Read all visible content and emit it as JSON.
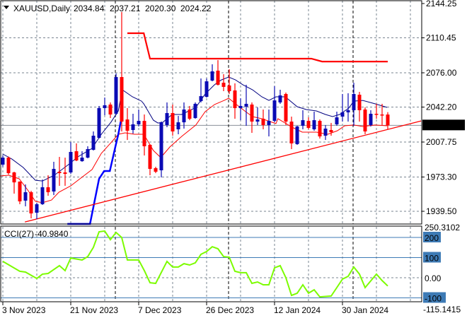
{
  "chart_data": {
    "type": "candlestick",
    "symbol": "XAUUSD",
    "timeframe": "Daily",
    "header": {
      "symbol_tf": "XAUUSD,Daily",
      "open": "2034.84",
      "high": "2037.21",
      "low": "2020.30",
      "close": "2024.22"
    },
    "price_axis": {
      "ylim": [
        1923.0,
        2144.25
      ],
      "labels": [
        "2144.25",
        "2110.45",
        "2076.00",
        "2042.20",
        "2007.75",
        "1973.30",
        "1939.50"
      ],
      "label_values": [
        2144.25,
        2110.45,
        2076.0,
        2042.2,
        2007.75,
        1973.3,
        1939.5
      ]
    },
    "current_price": {
      "label": "2024.22",
      "value": 2024.22
    },
    "date_labels": [
      {
        "label": "3 Nov 2023",
        "index": 0
      },
      {
        "label": "21 Nov 2023",
        "index": 12
      },
      {
        "label": "7 Dec 2023",
        "index": 24
      },
      {
        "label": "26 Dec 2023",
        "index": 36
      },
      {
        "label": "12 Jan 2024",
        "index": 48
      },
      {
        "label": "30 Jan 2024",
        "index": 60
      }
    ],
    "period_separators": [
      20,
      40,
      62
    ],
    "ohlc": [
      [
        1985.5,
        1994.5,
        1983.4,
        1992.4
      ],
      [
        1992.4,
        1993.5,
        1975.7,
        1977.1
      ],
      [
        1977.8,
        1978.5,
        1956.9,
        1968.0
      ],
      [
        1968.8,
        1969.0,
        1946.5,
        1949.3
      ],
      [
        1950.0,
        1966.0,
        1944.4,
        1958.3
      ],
      [
        1958.3,
        1959.7,
        1932.5,
        1937.4
      ],
      [
        1938.1,
        1947.9,
        1931.8,
        1946.5
      ],
      [
        1946.5,
        1970.8,
        1945.8,
        1963.2
      ],
      [
        1963.2,
        1975.0,
        1954.8,
        1958.3
      ],
      [
        1959.0,
        1988.3,
        1955.5,
        1981.3
      ],
      [
        1978.5,
        1993.1,
        1964.6,
        1977.1
      ],
      [
        1977.8,
        1992.4,
        1964.6,
        1976.4
      ],
      [
        1977.8,
        2007.7,
        1976.4,
        1998.0
      ],
      [
        1998.7,
        2006.4,
        1988.9,
        1989.6
      ],
      [
        1988.9,
        1998.7,
        1988.3,
        1992.4
      ],
      [
        1992.4,
        2003.6,
        1991.7,
        2000.8
      ],
      [
        2000.1,
        2018.2,
        1999.4,
        2014.0
      ],
      [
        2011.9,
        2043.3,
        2011.2,
        2041.2
      ],
      [
        2041.2,
        2051.6,
        2034.2,
        2044.0
      ],
      [
        2044.7,
        2046.8,
        2031.4,
        2034.9
      ],
      [
        2035.6,
        2075.3,
        2034.2,
        2071.8
      ],
      [
        2071.8,
        2135.9,
        2018.2,
        2027.9
      ],
      [
        2030.0,
        2041.2,
        2009.8,
        2018.9
      ],
      [
        2019.6,
        2035.6,
        2016.1,
        2025.2
      ],
      [
        2025.2,
        2039.8,
        2023.1,
        2028.6
      ],
      [
        2028.6,
        2034.9,
        1994.5,
        2003.6
      ],
      [
        2005.0,
        2005.7,
        1975.0,
        1981.3
      ],
      [
        1982.0,
        1983.4,
        1977.1,
        1978.5
      ],
      [
        1979.9,
        2028.0,
        1972.9,
        2027.2
      ],
      [
        2024.5,
        2046.8,
        2022.4,
        2036.3
      ],
      [
        2036.3,
        2044.7,
        2014.0,
        2018.2
      ],
      [
        2020.3,
        2033.5,
        2015.4,
        2027.2
      ],
      [
        2027.2,
        2046.8,
        2021.0,
        2039.8
      ],
      [
        2039.8,
        2043.3,
        2029.3,
        2030.7
      ],
      [
        2031.4,
        2046.8,
        2030.7,
        2045.4
      ],
      [
        2048.1,
        2070.4,
        2046.8,
        2053.0
      ],
      [
        2052.3,
        2070.4,
        2051.6,
        2067.6
      ],
      [
        2068.3,
        2084.4,
        2067.6,
        2077.4
      ],
      [
        2078.1,
        2088.5,
        2063.5,
        2064.2
      ],
      [
        2066.2,
        2074.6,
        2057.9,
        2062.1
      ],
      [
        2063.5,
        2079.5,
        2055.1,
        2057.9
      ],
      [
        2058.6,
        2065.6,
        2030.7,
        2041.2
      ],
      [
        2041.2,
        2050.9,
        2029.3,
        2043.3
      ],
      [
        2042.6,
        2064.2,
        2023.8,
        2045.4
      ],
      [
        2044.7,
        2046.8,
        2016.8,
        2027.9
      ],
      [
        2027.9,
        2041.9,
        2024.5,
        2030.0
      ],
      [
        2030.7,
        2039.8,
        2020.3,
        2024.5
      ],
      [
        2024.5,
        2039.8,
        2013.3,
        2028.6
      ],
      [
        2028.6,
        2062.8,
        2027.2,
        2048.8
      ],
      [
        2046.8,
        2059.3,
        2045.4,
        2053.7
      ],
      [
        2055.1,
        2056.5,
        2024.5,
        2027.9
      ],
      [
        2027.9,
        2032.8,
        2000.8,
        2006.4
      ],
      [
        2005.7,
        2023.8,
        2005.0,
        2023.1
      ],
      [
        2023.8,
        2039.1,
        2020.3,
        2029.3
      ],
      [
        2028.6,
        2032.1,
        2020.3,
        2021.7
      ],
      [
        2020.3,
        2037.7,
        2018.9,
        2029.3
      ],
      [
        2028.6,
        2030.0,
        2011.2,
        2013.3
      ],
      [
        2014.0,
        2024.5,
        2009.8,
        2021.0
      ],
      [
        2019.6,
        2026.6,
        2014.0,
        2017.5
      ],
      [
        2025.2,
        2037.7,
        2023.8,
        2032.1
      ],
      [
        2032.8,
        2055.1,
        2027.9,
        2037.0
      ],
      [
        2037.0,
        2055.8,
        2027.9,
        2039.1
      ],
      [
        2039.1,
        2066.2,
        2023.8,
        2055.1
      ],
      [
        2054.4,
        2057.2,
        2027.9,
        2039.1
      ],
      [
        2039.8,
        2041.9,
        2015.4,
        2018.2
      ],
      [
        2024.5,
        2039.1,
        2023.1,
        2035.6
      ],
      [
        2035.6,
        2045.4,
        2030.7,
        2034.9
      ],
      [
        2034.9,
        2045.4,
        2024.5,
        2034.2
      ],
      [
        2034.84,
        2037.21,
        2020.3,
        2024.22
      ]
    ],
    "series": [
      {
        "name": "fast-ma",
        "color": "#000080",
        "points": [
          [
            0,
            1995.9
          ],
          [
            1.6,
            1991.0
          ],
          [
            3.6,
            1982.7
          ],
          [
            5.75,
            1970.1
          ],
          [
            7,
            1969.4
          ],
          [
            9.1,
            1975.0
          ],
          [
            11.6,
            1985.5
          ],
          [
            13.25,
            1993.1
          ],
          [
            15.75,
            2001.5
          ],
          [
            17.4,
            2015.4
          ],
          [
            19.1,
            2027.3
          ],
          [
            20.4,
            2038.4
          ],
          [
            21.1,
            2059.3
          ],
          [
            22.9,
            2052.3
          ],
          [
            24.5,
            2048.1
          ],
          [
            24.9,
            2045.4
          ],
          [
            26.6,
            2029.3
          ],
          [
            27.4,
            2026.5
          ],
          [
            28.25,
            2027.2
          ],
          [
            29.9,
            2034.9
          ],
          [
            31.6,
            2034.9
          ],
          [
            34.1,
            2041.9
          ],
          [
            35.75,
            2055.1
          ],
          [
            37.4,
            2064.2
          ],
          [
            38.6,
            2069.0
          ],
          [
            39.9,
            2071.8
          ],
          [
            41.1,
            2069.0
          ],
          [
            42.4,
            2064.2
          ],
          [
            44.1,
            2059.3
          ],
          [
            45.75,
            2052.3
          ],
          [
            47,
            2048.8
          ],
          [
            48.25,
            2052.3
          ],
          [
            49.9,
            2052.3
          ],
          [
            52,
            2042.6
          ],
          [
            53.6,
            2039.8
          ],
          [
            55.4,
            2038.4
          ],
          [
            57,
            2034.9
          ],
          [
            58.25,
            2032.8
          ],
          [
            59.5,
            2034.9
          ],
          [
            61.1,
            2041.2
          ],
          [
            62,
            2048.1
          ],
          [
            63.6,
            2048.8
          ],
          [
            65.75,
            2045.4
          ],
          [
            67.9,
            2041.9
          ]
        ]
      },
      {
        "name": "slow-ma",
        "color": "#ff0000",
        "points": [
          [
            -0.5,
            1974.3
          ],
          [
            1.1,
            1975.0
          ],
          [
            2.9,
            1971.5
          ],
          [
            4.5,
            1959.7
          ],
          [
            5.75,
            1949.3
          ],
          [
            7,
            1947.9
          ],
          [
            8.6,
            1950.6
          ],
          [
            9.9,
            1958.3
          ],
          [
            12,
            1964.6
          ],
          [
            13.6,
            1971.5
          ],
          [
            15.75,
            1980.6
          ],
          [
            17.4,
            1996.6
          ],
          [
            19.1,
            2007.1
          ],
          [
            20.4,
            2015.4
          ],
          [
            21.6,
            2016.8
          ],
          [
            23.25,
            2015.4
          ],
          [
            24.9,
            2015.4
          ],
          [
            26.6,
            1999.4
          ],
          [
            27.9,
            1992.4
          ],
          [
            29.5,
            2002.9
          ],
          [
            31.6,
            2013.3
          ],
          [
            34.1,
            2024.5
          ],
          [
            35.75,
            2037.7
          ],
          [
            37.4,
            2044.7
          ],
          [
            39.1,
            2048.8
          ],
          [
            39.9,
            2050.9
          ],
          [
            41.1,
            2045.4
          ],
          [
            42.9,
            2037.7
          ],
          [
            44.1,
            2032.8
          ],
          [
            45.75,
            2030.7
          ],
          [
            48.25,
            2025.9
          ],
          [
            48.6,
            2030.7
          ],
          [
            51.1,
            2022.4
          ],
          [
            52.9,
            2017.5
          ],
          [
            55.4,
            2017.5
          ],
          [
            57.4,
            2015.4
          ],
          [
            59.1,
            2018.9
          ],
          [
            60.4,
            2023.8
          ],
          [
            62,
            2024.5
          ],
          [
            63.6,
            2023.1
          ],
          [
            65.75,
            2024.5
          ],
          [
            67.9,
            2023.8
          ]
        ]
      },
      {
        "name": "lower-band",
        "color": "#0000ff",
        "points": [
          [
            11.4,
            1927.0
          ],
          [
            15.4,
            1927.0
          ],
          [
            17,
            1971.5
          ],
          [
            17.9,
            1979.2
          ],
          [
            18.9,
            1979.2
          ],
          [
            19.9,
            2003.6
          ],
          [
            20.4,
            2015.4
          ],
          [
            21,
            2032.8
          ]
        ]
      },
      {
        "name": "upper-band",
        "color": "#ff0000",
        "points": [
          [
            22,
            2115.0
          ],
          [
            24.9,
            2115.0
          ],
          [
            26,
            2089.9
          ],
          [
            54.5,
            2089.9
          ],
          [
            56.4,
            2087.1
          ],
          [
            68,
            2087.1
          ]
        ]
      },
      {
        "name": "trendline",
        "color": "#ff0000",
        "points": [
          [
            3.9,
            1929.0
          ],
          [
            73.9,
            2028.6
          ]
        ]
      }
    ],
    "cci": {
      "label": "CCI(27)",
      "value_label": "-40.9840",
      "max_label": "250.3102",
      "min_label": "-115.1415",
      "ylim": [
        -115.1415,
        250.3102
      ],
      "levels": [
        {
          "label": "200",
          "value": 200
        },
        {
          "label": "100",
          "value": 100
        },
        {
          "label": "-100",
          "value": -100
        }
      ],
      "zero_label": "0.00",
      "color": "#7cfc00",
      "points": [
        [
          0,
          81
        ],
        [
          3,
          32
        ],
        [
          4,
          28
        ],
        [
          6,
          -4
        ],
        [
          7,
          18
        ],
        [
          8,
          21
        ],
        [
          10,
          60
        ],
        [
          11,
          35
        ],
        [
          12,
          98
        ],
        [
          14,
          88
        ],
        [
          15,
          105
        ],
        [
          16,
          151
        ],
        [
          17,
          228
        ],
        [
          18,
          232
        ],
        [
          19,
          189
        ],
        [
          20,
          225
        ],
        [
          21,
          200
        ],
        [
          22,
          88
        ],
        [
          24,
          88
        ],
        [
          25,
          35
        ],
        [
          26,
          -25
        ],
        [
          27,
          -28
        ],
        [
          29,
          81
        ],
        [
          30,
          53
        ],
        [
          31,
          53
        ],
        [
          32,
          70
        ],
        [
          33,
          63
        ],
        [
          34,
          74
        ],
        [
          35,
          116
        ],
        [
          36,
          130
        ],
        [
          37,
          154
        ],
        [
          38,
          144
        ],
        [
          39,
          105
        ],
        [
          40,
          102
        ],
        [
          41,
          32
        ],
        [
          42,
          25
        ],
        [
          43,
          25
        ],
        [
          44,
          -28
        ],
        [
          45,
          -21
        ],
        [
          46,
          -35
        ],
        [
          47,
          -35
        ],
        [
          48,
          49
        ],
        [
          49,
          60
        ],
        [
          50,
          0
        ],
        [
          51,
          -88
        ],
        [
          52,
          -77
        ],
        [
          53,
          -35
        ],
        [
          54,
          -77
        ],
        [
          55,
          -60
        ],
        [
          56,
          -95
        ],
        [
          58,
          -91
        ],
        [
          59,
          -49
        ],
        [
          60,
          -7
        ],
        [
          61,
          7
        ],
        [
          62,
          53
        ],
        [
          63,
          18
        ],
        [
          64,
          -49
        ],
        [
          66,
          18
        ],
        [
          67,
          -14
        ],
        [
          68,
          -41
        ]
      ]
    },
    "colors": {
      "bull": "#0a0ab4",
      "bear": "#ff0000",
      "grid": "#7a8591",
      "level": "#3d7ab5"
    }
  }
}
